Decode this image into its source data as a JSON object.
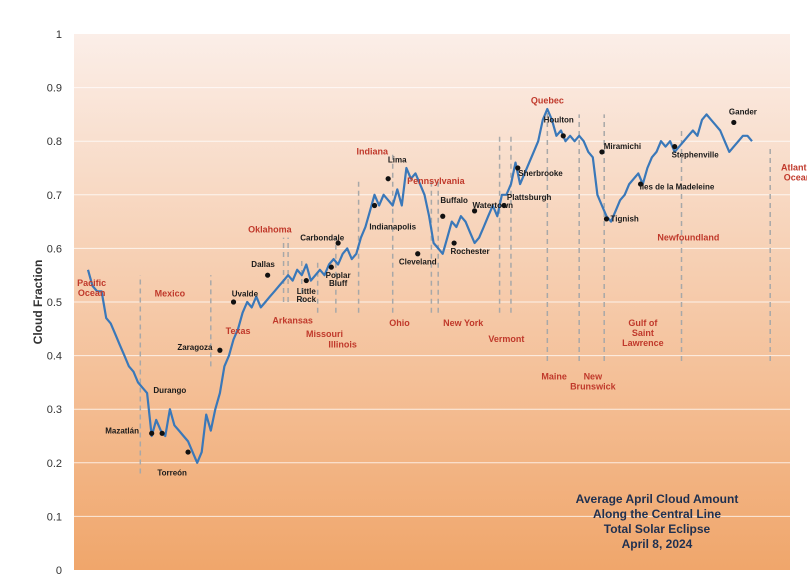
{
  "chart_data": {
    "type": "line",
    "title_lines": [
      "Average April Cloud Amount",
      "Along the Central Line",
      "Total Solar Eclipse",
      "April 8, 2024"
    ],
    "ylabel": "Cloud Fraction",
    "xlabel": "",
    "ylim": [
      0,
      1
    ],
    "yticks": [
      "0",
      "0.1",
      "0.2",
      "0.3",
      "0.4",
      "0.5",
      "0.6",
      "0.7",
      "0.8",
      "0.9",
      "1"
    ],
    "grid": true,
    "colors": {
      "line": "#3a78b9",
      "region_label": "#c0392b",
      "divider": "#a8a8a8",
      "bg_top": "#fbeee8",
      "bg_bottom": "#f0a66b"
    },
    "series": [
      {
        "values": [
          0.56,
          0.53,
          0.52,
          0.52,
          0.47,
          0.46,
          0.44,
          0.42,
          0.4,
          0.38,
          0.37,
          0.35,
          0.34,
          0.33,
          0.25,
          0.28,
          0.26,
          0.25,
          0.3,
          0.27,
          0.26,
          0.25,
          0.24,
          0.22,
          0.2,
          0.22,
          0.29,
          0.26,
          0.3,
          0.33,
          0.38,
          0.4,
          0.43,
          0.45,
          0.48,
          0.5,
          0.49,
          0.51,
          0.49,
          0.5,
          0.51,
          0.52,
          0.53,
          0.54,
          0.55,
          0.54,
          0.56,
          0.55,
          0.57,
          0.54,
          0.55,
          0.56,
          0.55,
          0.57,
          0.58,
          0.57,
          0.59,
          0.6,
          0.58,
          0.59,
          0.62,
          0.64,
          0.67,
          0.7,
          0.68,
          0.7,
          0.69,
          0.68,
          0.71,
          0.68,
          0.75,
          0.73,
          0.74,
          0.72,
          0.7,
          0.66,
          0.61,
          0.6,
          0.59,
          0.62,
          0.65,
          0.64,
          0.66,
          0.65,
          0.63,
          0.61,
          0.62,
          0.64,
          0.66,
          0.68,
          0.66,
          0.7,
          0.7,
          0.72,
          0.76,
          0.72,
          0.74,
          0.76,
          0.78,
          0.8,
          0.84,
          0.86,
          0.84,
          0.81,
          0.82,
          0.8,
          0.81,
          0.8,
          0.81,
          0.8,
          0.78,
          0.77,
          0.7,
          0.68,
          0.66,
          0.65,
          0.67,
          0.69,
          0.7,
          0.72,
          0.73,
          0.74,
          0.72,
          0.75,
          0.77,
          0.78,
          0.8,
          0.79,
          0.8,
          0.78,
          0.79,
          0.8,
          0.81,
          0.82,
          0.81,
          0.84,
          0.85,
          0.84,
          0.83,
          0.82,
          0.8,
          0.78,
          0.79,
          0.8,
          0.81,
          0.81,
          0.8
        ]
      }
    ],
    "regions": [
      {
        "label": "Pacific\nOcean",
        "x": 0.8,
        "y": 0.53
      },
      {
        "label": "Mexico",
        "x": 18,
        "y": 0.51
      },
      {
        "label": "Texas",
        "x": 33,
        "y": 0.44
      },
      {
        "label": "Oklahoma",
        "x": 40,
        "y": 0.63
      },
      {
        "label": "Arkansas",
        "x": 45,
        "y": 0.46
      },
      {
        "label": "Missouri",
        "x": 52,
        "y": 0.435
      },
      {
        "label": "Illinois",
        "x": 56,
        "y": 0.415
      },
      {
        "label": "Indiana",
        "x": 62.5,
        "y": 0.775
      },
      {
        "label": "Ohio",
        "x": 68.5,
        "y": 0.455
      },
      {
        "label": "Pennsylvania",
        "x": 76.5,
        "y": 0.72
      },
      {
        "label": "New York",
        "x": 82.5,
        "y": 0.455
      },
      {
        "label": "Vermont",
        "x": 92,
        "y": 0.425
      },
      {
        "label": "Quebec",
        "x": 101,
        "y": 0.87
      },
      {
        "label": "Maine",
        "x": 102.5,
        "y": 0.355
      },
      {
        "label": "New\nBrunswick",
        "x": 111,
        "y": 0.355
      },
      {
        "label": "Gulf of\nSaint\nLawrence",
        "x": 122,
        "y": 0.455
      },
      {
        "label": "Newfoundland",
        "x": 132,
        "y": 0.615
      },
      {
        "label": "Atlantic\nOcean",
        "x": 156,
        "y": 0.745
      }
    ],
    "cities": [
      {
        "label": "Mazatlán",
        "x": 14,
        "y": 0.255,
        "lx": 7.5,
        "ly": 0.255
      },
      {
        "label": "Durango",
        "x": 16.3,
        "y": 0.255,
        "lx": 18,
        "ly": 0.33
      },
      {
        "label": "Torreón",
        "x": 22,
        "y": 0.22,
        "lx": 18.5,
        "ly": 0.176
      },
      {
        "label": "Zaragoza",
        "x": 29,
        "y": 0.41,
        "lx": 23.5,
        "ly": 0.41
      },
      {
        "label": "Uvalde",
        "x": 32,
        "y": 0.5,
        "lx": 34.5,
        "ly": 0.51
      },
      {
        "label": "Dallas",
        "x": 39.5,
        "y": 0.55,
        "lx": 38.5,
        "ly": 0.565
      },
      {
        "label": "Little\nRock",
        "x": 48,
        "y": 0.54,
        "lx": 48,
        "ly": 0.515
      },
      {
        "label": "Carbondale",
        "x": 55,
        "y": 0.61,
        "lx": 51.5,
        "ly": 0.615
      },
      {
        "label": "Poplar\nBluff",
        "x": 53.5,
        "y": 0.565,
        "lx": 55,
        "ly": 0.545
      },
      {
        "label": "Indianapolis",
        "x": 63,
        "y": 0.68,
        "lx": 67,
        "ly": 0.635
      },
      {
        "label": "Lima",
        "x": 66,
        "y": 0.73,
        "lx": 68,
        "ly": 0.76
      },
      {
        "label": "Cleveland",
        "x": 72.5,
        "y": 0.59,
        "lx": 72.5,
        "ly": 0.57
      },
      {
        "label": "Buffalo",
        "x": 78,
        "y": 0.66,
        "lx": 80.5,
        "ly": 0.685
      },
      {
        "label": "Rochester",
        "x": 80.5,
        "y": 0.61,
        "lx": 84,
        "ly": 0.59
      },
      {
        "label": "Watertown",
        "x": 85,
        "y": 0.67,
        "lx": 89,
        "ly": 0.675
      },
      {
        "label": "Plattsburgh",
        "x": 91.5,
        "y": 0.68,
        "lx": 97,
        "ly": 0.69
      },
      {
        "label": "Sherbrooke",
        "x": 94.5,
        "y": 0.75,
        "lx": 99.5,
        "ly": 0.735
      },
      {
        "label": "Houlton",
        "x": 104.5,
        "y": 0.81,
        "lx": 103.5,
        "ly": 0.835
      },
      {
        "label": "Miramichi",
        "x": 113,
        "y": 0.78,
        "lx": 117.5,
        "ly": 0.785
      },
      {
        "label": "Tignish",
        "x": 114,
        "y": 0.655,
        "lx": 118,
        "ly": 0.65
      },
      {
        "label": "Iles de la Madeleine",
        "x": 121.5,
        "y": 0.72,
        "lx": 129.5,
        "ly": 0.71
      },
      {
        "label": "Stephenville",
        "x": 129,
        "y": 0.79,
        "lx": 133.5,
        "ly": 0.77
      },
      {
        "label": "Gander",
        "x": 142,
        "y": 0.835,
        "lx": 144,
        "ly": 0.85
      }
    ],
    "dividers": [
      {
        "x": 11.5,
        "y0": 0.18,
        "y1": 0.55
      },
      {
        "x": 27,
        "y0": 0.38,
        "y1": 0.55
      },
      {
        "x": 43,
        "y0": 0.5,
        "y1": 0.62
      },
      {
        "x": 44,
        "y0": 0.5,
        "y1": 0.62
      },
      {
        "x": 47,
        "y0": 0.5,
        "y1": 0.58
      },
      {
        "x": 50.5,
        "y0": 0.48,
        "y1": 0.58
      },
      {
        "x": 54.5,
        "y0": 0.48,
        "y1": 0.63
      },
      {
        "x": 59.5,
        "y0": 0.48,
        "y1": 0.73
      },
      {
        "x": 67,
        "y0": 0.48,
        "y1": 0.78
      },
      {
        "x": 75.5,
        "y0": 0.48,
        "y1": 0.73
      },
      {
        "x": 77,
        "y0": 0.48,
        "y1": 0.73
      },
      {
        "x": 90.5,
        "y0": 0.48,
        "y1": 0.81
      },
      {
        "x": 93,
        "y0": 0.48,
        "y1": 0.81
      },
      {
        "x": 101,
        "y0": 0.39,
        "y1": 0.86
      },
      {
        "x": 108,
        "y0": 0.39,
        "y1": 0.85
      },
      {
        "x": 113.5,
        "y0": 0.39,
        "y1": 0.85
      },
      {
        "x": 130.5,
        "y0": 0.39,
        "y1": 0.82
      },
      {
        "x": 150,
        "y0": 0.39,
        "y1": 0.79
      }
    ]
  }
}
